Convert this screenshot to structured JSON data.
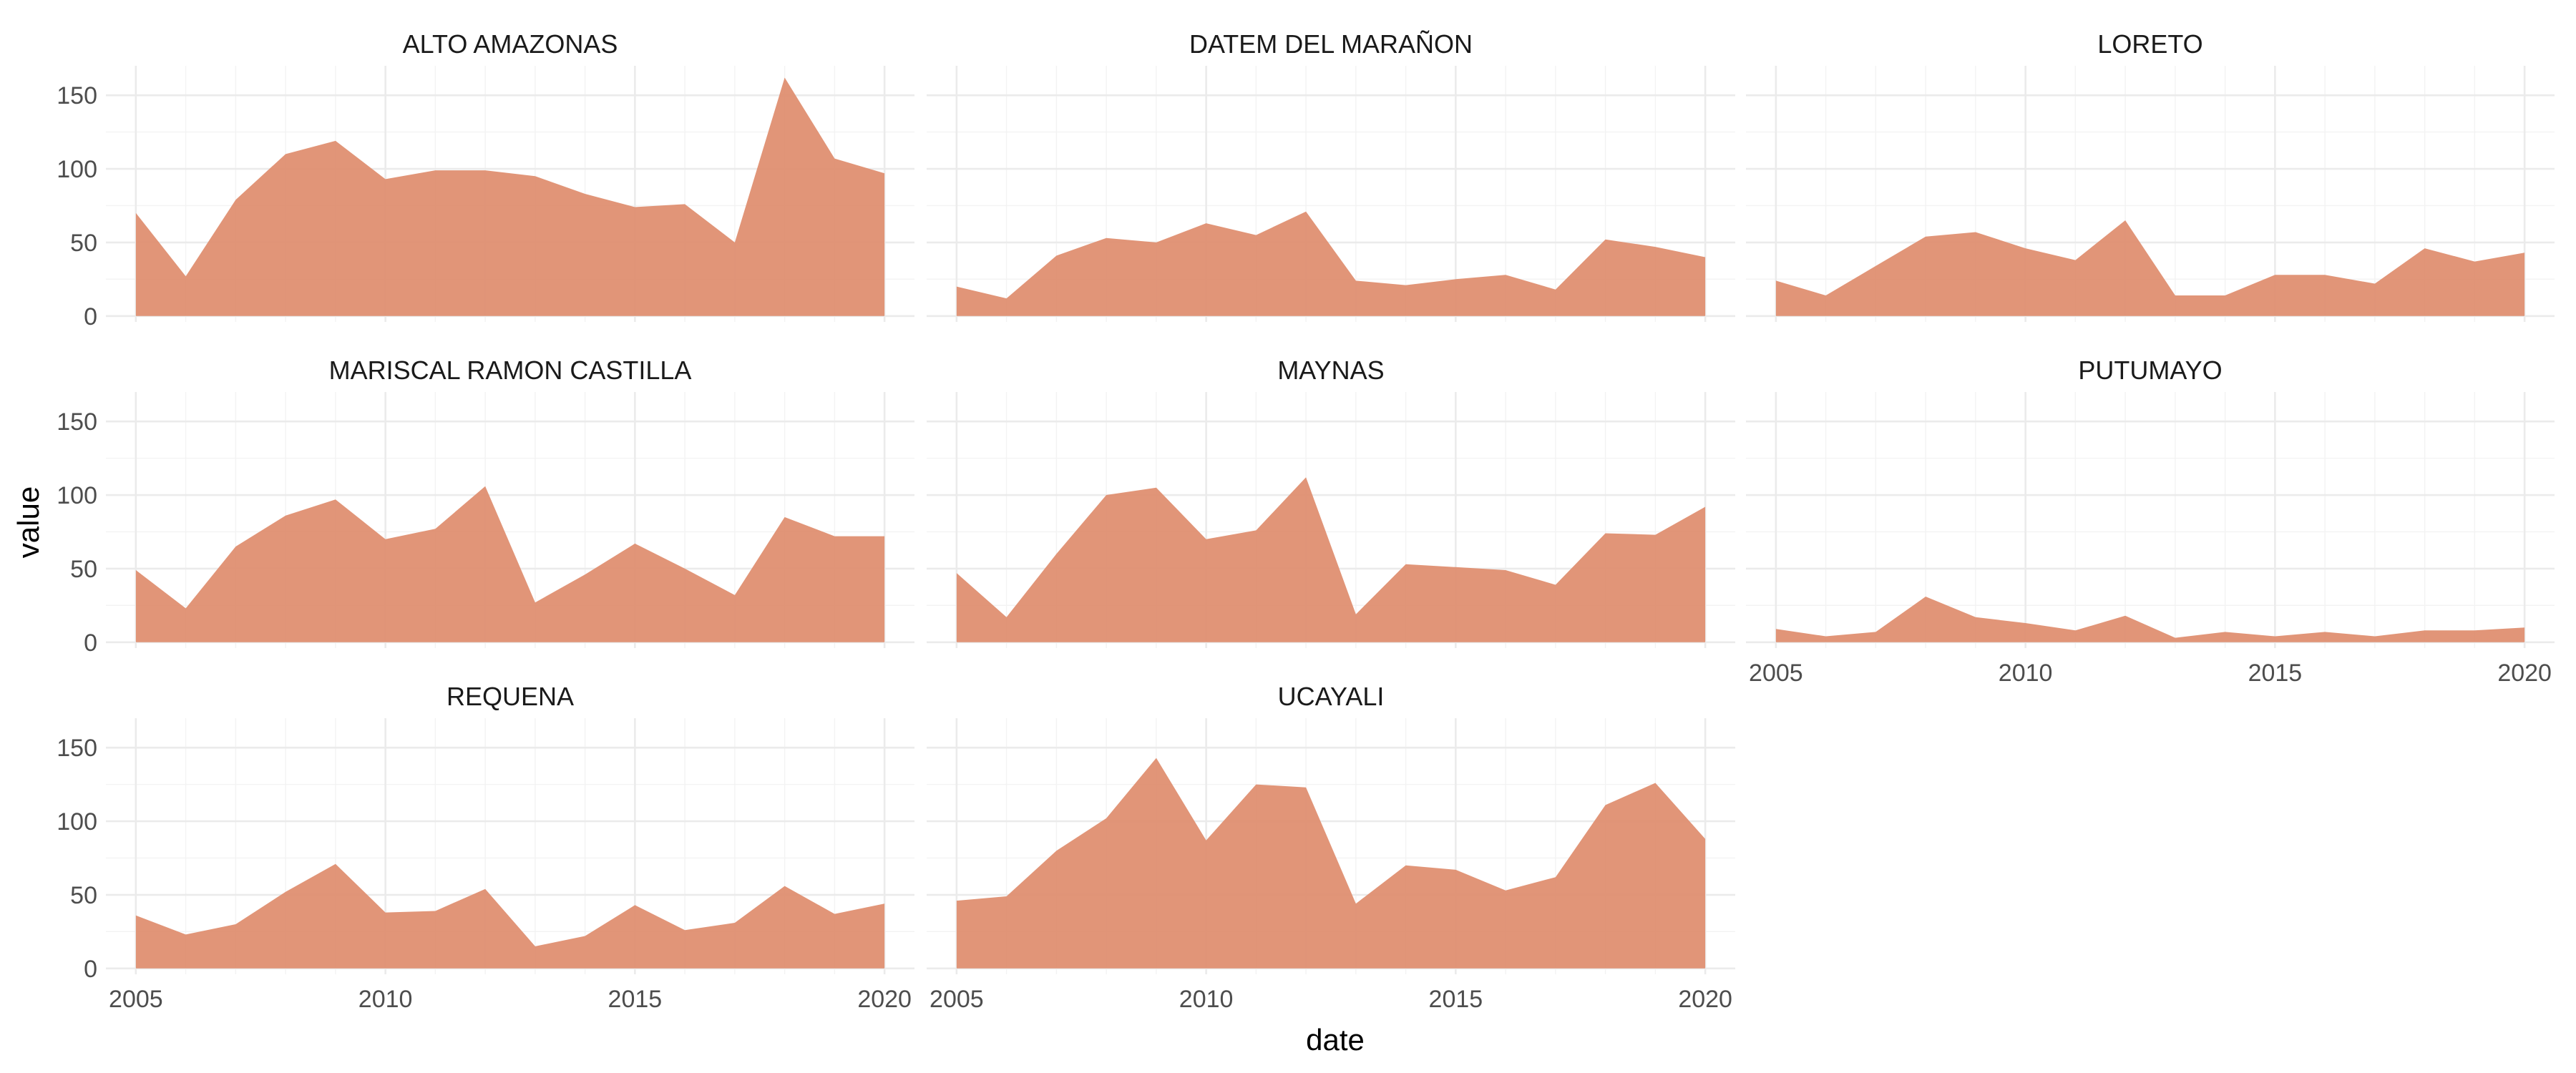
{
  "chart_data": {
    "type": "area",
    "xlabel": "date",
    "ylabel": "value",
    "fill_color": "#DE8C6C",
    "x": [
      2005,
      2006,
      2007,
      2008,
      2009,
      2010,
      2011,
      2012,
      2013,
      2014,
      2015,
      2016,
      2017,
      2018,
      2019,
      2020
    ],
    "x_ticks": [
      "2005",
      "2010",
      "2015",
      "2020"
    ],
    "y_ticks": [
      "0",
      "50",
      "100",
      "150"
    ],
    "xlim": [
      2004.4,
      2020.6
    ],
    "ylim": [
      -4,
      170
    ],
    "grid": true,
    "panels": [
      {
        "name": "ALTO AMAZONAS",
        "values": [
          70,
          27,
          79,
          110,
          119,
          93,
          99,
          99,
          95,
          83,
          74,
          76,
          50,
          162,
          107,
          97
        ]
      },
      {
        "name": "DATEM DEL MARAÑON",
        "values": [
          20,
          12,
          41,
          53,
          50,
          63,
          55,
          71,
          24,
          21,
          25,
          28,
          18,
          52,
          47,
          40
        ]
      },
      {
        "name": "LORETO",
        "values": [
          24,
          14,
          34,
          54,
          57,
          46,
          38,
          65,
          14,
          14,
          28,
          28,
          22,
          46,
          37,
          43
        ]
      },
      {
        "name": "MARISCAL RAMON CASTILLA",
        "values": [
          49,
          23,
          65,
          86,
          97,
          70,
          77,
          106,
          27,
          46,
          67,
          50,
          32,
          85,
          72,
          72
        ]
      },
      {
        "name": "MAYNAS",
        "values": [
          47,
          17,
          60,
          100,
          105,
          70,
          76,
          112,
          19,
          53,
          51,
          49,
          39,
          74,
          73,
          92
        ]
      },
      {
        "name": "PUTUMAYO",
        "values": [
          9,
          4,
          7,
          31,
          17,
          13,
          8,
          18,
          3,
          7,
          4,
          7,
          4,
          8,
          8,
          10
        ]
      },
      {
        "name": "REQUENA",
        "values": [
          36,
          23,
          30,
          52,
          71,
          38,
          39,
          54,
          15,
          22,
          43,
          26,
          31,
          56,
          37,
          44
        ]
      },
      {
        "name": "UCAYALI",
        "values": [
          46,
          49,
          80,
          102,
          143,
          87,
          125,
          123,
          44,
          70,
          67,
          53,
          62,
          111,
          126,
          88
        ]
      }
    ]
  }
}
